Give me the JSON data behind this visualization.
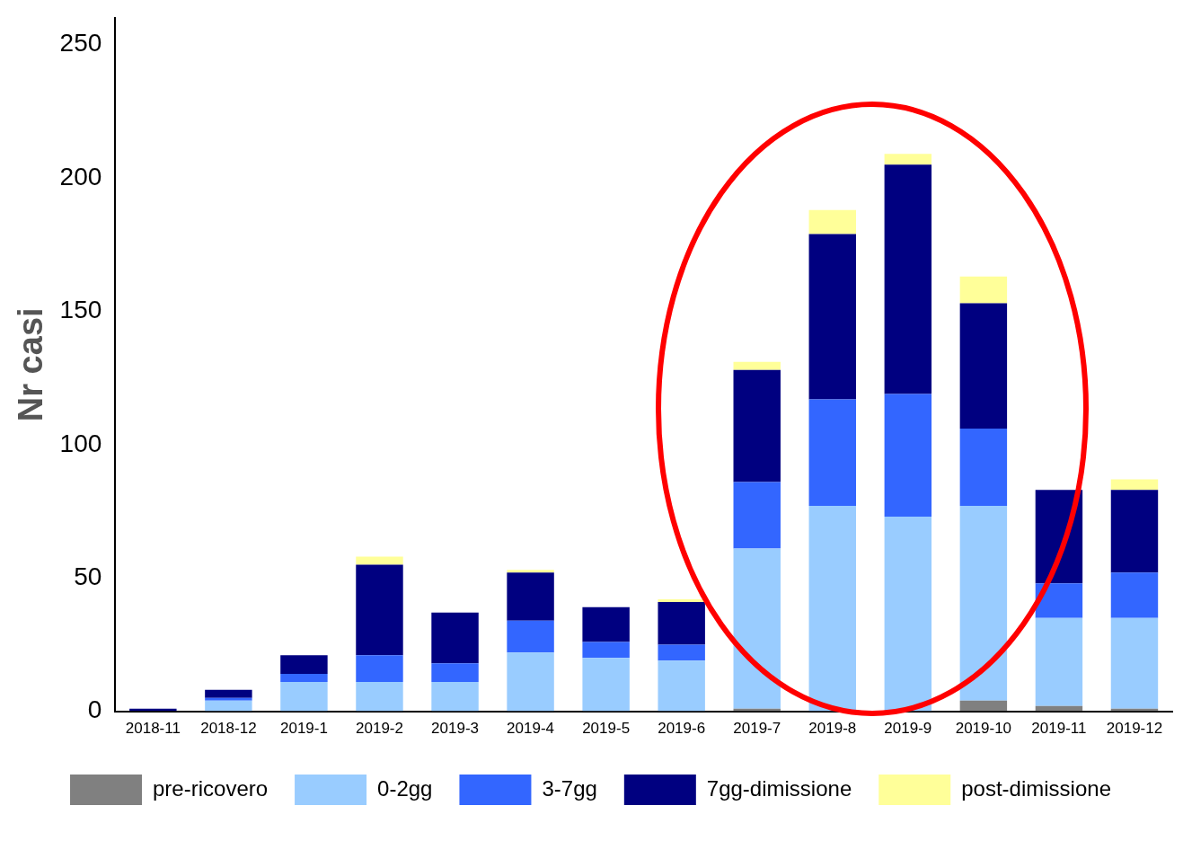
{
  "chart_data": {
    "type": "bar",
    "stacked": true,
    "ylabel": "Nr casi",
    "categories": [
      "2018-11",
      "2018-12",
      "2019-1",
      "2019-2",
      "2019-3",
      "2019-4",
      "2019-5",
      "2019-6",
      "2019-7",
      "2019-8",
      "2019-9",
      "2019-10",
      "2019-11",
      "2019-12"
    ],
    "series": [
      {
        "name": "pre-ricovero",
        "color": "#808080",
        "values": [
          0,
          0,
          0,
          0,
          0,
          0,
          0,
          0,
          1,
          0,
          null,
          4,
          2,
          1
        ]
      },
      {
        "name": "0-2gg",
        "color": "#99ccff",
        "values": [
          0,
          4,
          11,
          11,
          11,
          22,
          20,
          19,
          60,
          77,
          73,
          73,
          33,
          34
        ]
      },
      {
        "name": "3-7gg",
        "color": "#3366ff",
        "values": [
          0,
          1,
          3,
          10,
          7,
          12,
          6,
          6,
          25,
          40,
          46,
          29,
          13,
          17
        ]
      },
      {
        "name": "7gg-dimissione",
        "color": "#000080",
        "values": [
          1,
          3,
          7,
          34,
          19,
          18,
          13,
          16,
          42,
          62,
          86,
          47,
          35,
          31
        ]
      },
      {
        "name": "post-dimissione",
        "color": "#ffff99",
        "values": [
          0,
          0,
          0,
          3,
          0,
          1,
          0,
          1,
          3,
          9,
          4,
          10,
          0,
          4
        ]
      }
    ],
    "ylim": [
      0,
      260
    ],
    "yticks": [
      0,
      50,
      100,
      150,
      200,
      250
    ],
    "grid": false,
    "legend": "bottom"
  }
}
